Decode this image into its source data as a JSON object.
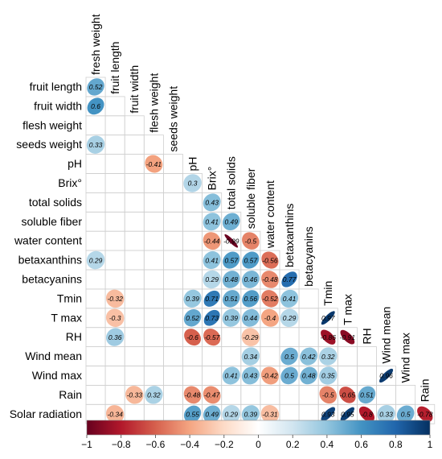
{
  "chart_data": {
    "type": "heatmap",
    "variables": [
      "fresh weight",
      "fruit length",
      "fruit width",
      "flesh weight",
      "seeds weight",
      "pH",
      "Brix°",
      "total solids",
      "soluble fiber",
      "water content",
      "betaxanthins",
      "betacyanins",
      "Tmin",
      "T max",
      "RH",
      "Wind mean",
      "Wind max",
      "Rain",
      "Solar radiation"
    ],
    "cells": [
      {
        "row": "fruit length",
        "col": "fresh weight",
        "value": 0.52
      },
      {
        "row": "fruit width",
        "col": "fresh weight",
        "value": 0.6
      },
      {
        "row": "seeds weight",
        "col": "fresh weight",
        "value": 0.33
      },
      {
        "row": "pH",
        "col": "flesh weight",
        "value": -0.41
      },
      {
        "row": "Brix°",
        "col": "pH",
        "value": 0.3
      },
      {
        "row": "total solids",
        "col": "Brix°",
        "value": 0.43
      },
      {
        "row": "soluble fiber",
        "col": "Brix°",
        "value": 0.41
      },
      {
        "row": "soluble fiber",
        "col": "total solids",
        "value": 0.49
      },
      {
        "row": "water content",
        "col": "Brix°",
        "value": -0.44
      },
      {
        "row": "water content",
        "col": "total solids",
        "value": -0.99
      },
      {
        "row": "water content",
        "col": "soluble fiber",
        "value": -0.5
      },
      {
        "row": "betaxanthins",
        "col": "fresh weight",
        "value": 0.29
      },
      {
        "row": "betaxanthins",
        "col": "Brix°",
        "value": 0.41
      },
      {
        "row": "betaxanthins",
        "col": "total solids",
        "value": 0.57
      },
      {
        "row": "betaxanthins",
        "col": "soluble fiber",
        "value": 0.57
      },
      {
        "row": "betaxanthins",
        "col": "water content",
        "value": -0.56
      },
      {
        "row": "betacyanins",
        "col": "Brix°",
        "value": 0.29
      },
      {
        "row": "betacyanins",
        "col": "total solids",
        "value": 0.48
      },
      {
        "row": "betacyanins",
        "col": "soluble fiber",
        "value": 0.46
      },
      {
        "row": "betacyanins",
        "col": "water content",
        "value": -0.48
      },
      {
        "row": "betacyanins",
        "col": "betaxanthins",
        "value": 0.77
      },
      {
        "row": "Tmin",
        "col": "fruit length",
        "value": -0.32
      },
      {
        "row": "Tmin",
        "col": "pH",
        "value": 0.39
      },
      {
        "row": "Tmin",
        "col": "Brix°",
        "value": 0.71
      },
      {
        "row": "Tmin",
        "col": "total solids",
        "value": 0.51
      },
      {
        "row": "Tmin",
        "col": "soluble fiber",
        "value": 0.56
      },
      {
        "row": "Tmin",
        "col": "water content",
        "value": -0.52
      },
      {
        "row": "Tmin",
        "col": "betaxanthins",
        "value": 0.41
      },
      {
        "row": "T max",
        "col": "fruit length",
        "value": -0.3
      },
      {
        "row": "T max",
        "col": "pH",
        "value": 0.52
      },
      {
        "row": "T max",
        "col": "Brix°",
        "value": 0.73
      },
      {
        "row": "T max",
        "col": "total solids",
        "value": 0.39
      },
      {
        "row": "T max",
        "col": "soluble fiber",
        "value": 0.44
      },
      {
        "row": "T max",
        "col": "water content",
        "value": -0.4
      },
      {
        "row": "T max",
        "col": "betaxanthins",
        "value": 0.29
      },
      {
        "row": "T max",
        "col": "Tmin",
        "value": 0.97
      },
      {
        "row": "RH",
        "col": "fruit length",
        "value": 0.36
      },
      {
        "row": "RH",
        "col": "pH",
        "value": -0.6
      },
      {
        "row": "RH",
        "col": "Brix°",
        "value": -0.57
      },
      {
        "row": "RH",
        "col": "soluble fiber",
        "value": -0.29
      },
      {
        "row": "RH",
        "col": "Tmin",
        "value": -0.86
      },
      {
        "row": "RH",
        "col": "T max",
        "value": -0.91
      },
      {
        "row": "Wind mean",
        "col": "soluble fiber",
        "value": 0.34
      },
      {
        "row": "Wind mean",
        "col": "betaxanthins",
        "value": 0.5
      },
      {
        "row": "Wind mean",
        "col": "betacyanins",
        "value": 0.42
      },
      {
        "row": "Wind mean",
        "col": "Tmin",
        "value": 0.32
      },
      {
        "row": "Wind max",
        "col": "total solids",
        "value": 0.41
      },
      {
        "row": "Wind max",
        "col": "soluble fiber",
        "value": 0.43
      },
      {
        "row": "Wind max",
        "col": "water content",
        "value": -0.42
      },
      {
        "row": "Wind max",
        "col": "betaxanthins",
        "value": 0.5
      },
      {
        "row": "Wind max",
        "col": "betacyanins",
        "value": 0.48
      },
      {
        "row": "Wind max",
        "col": "Tmin",
        "value": 0.35
      },
      {
        "row": "Wind max",
        "col": "Wind mean",
        "value": 0.96
      },
      {
        "row": "Rain",
        "col": "fruit width",
        "value": -0.33
      },
      {
        "row": "Rain",
        "col": "flesh weight",
        "value": 0.32
      },
      {
        "row": "Rain",
        "col": "pH",
        "value": -0.48
      },
      {
        "row": "Rain",
        "col": "Brix°",
        "value": -0.47
      },
      {
        "row": "Rain",
        "col": "Tmin",
        "value": -0.5
      },
      {
        "row": "Rain",
        "col": "T max",
        "value": -0.65
      },
      {
        "row": "Rain",
        "col": "RH",
        "value": 0.51
      },
      {
        "row": "Solar radiation",
        "col": "fruit length",
        "value": -0.34
      },
      {
        "row": "Solar radiation",
        "col": "pH",
        "value": 0.55
      },
      {
        "row": "Solar radiation",
        "col": "Brix°",
        "value": 0.49
      },
      {
        "row": "Solar radiation",
        "col": "total solids",
        "value": 0.29
      },
      {
        "row": "Solar radiation",
        "col": "soluble fiber",
        "value": 0.39
      },
      {
        "row": "Solar radiation",
        "col": "water content",
        "value": -0.31
      },
      {
        "row": "Solar radiation",
        "col": "Tmin",
        "value": 0.93
      },
      {
        "row": "Solar radiation",
        "col": "T max",
        "value": 0.95
      },
      {
        "row": "Solar radiation",
        "col": "RH",
        "value": -0.8
      },
      {
        "row": "Solar radiation",
        "col": "Wind mean",
        "value": 0.33
      },
      {
        "row": "Solar radiation",
        "col": "Wind max",
        "value": 0.5
      },
      {
        "row": "Solar radiation",
        "col": "Rain",
        "value": -0.78
      }
    ],
    "color_scale": {
      "range": [
        -1,
        1
      ],
      "ticks": [
        "-1",
        "-0.8",
        "-0.6",
        "-0.4",
        "-0.2",
        "0",
        "0.2",
        "0.4",
        "0.6",
        "0.8",
        "1"
      ],
      "stops": [
        "#67001F",
        "#B2182B",
        "#D6604D",
        "#F4A582",
        "#FDDBC7",
        "#FFFFFF",
        "#D1E5F0",
        "#92C5DE",
        "#4393C3",
        "#2166AC",
        "#053061"
      ]
    },
    "shape": "ellipse",
    "layout": "lower-triangle",
    "legend": "bottom"
  }
}
